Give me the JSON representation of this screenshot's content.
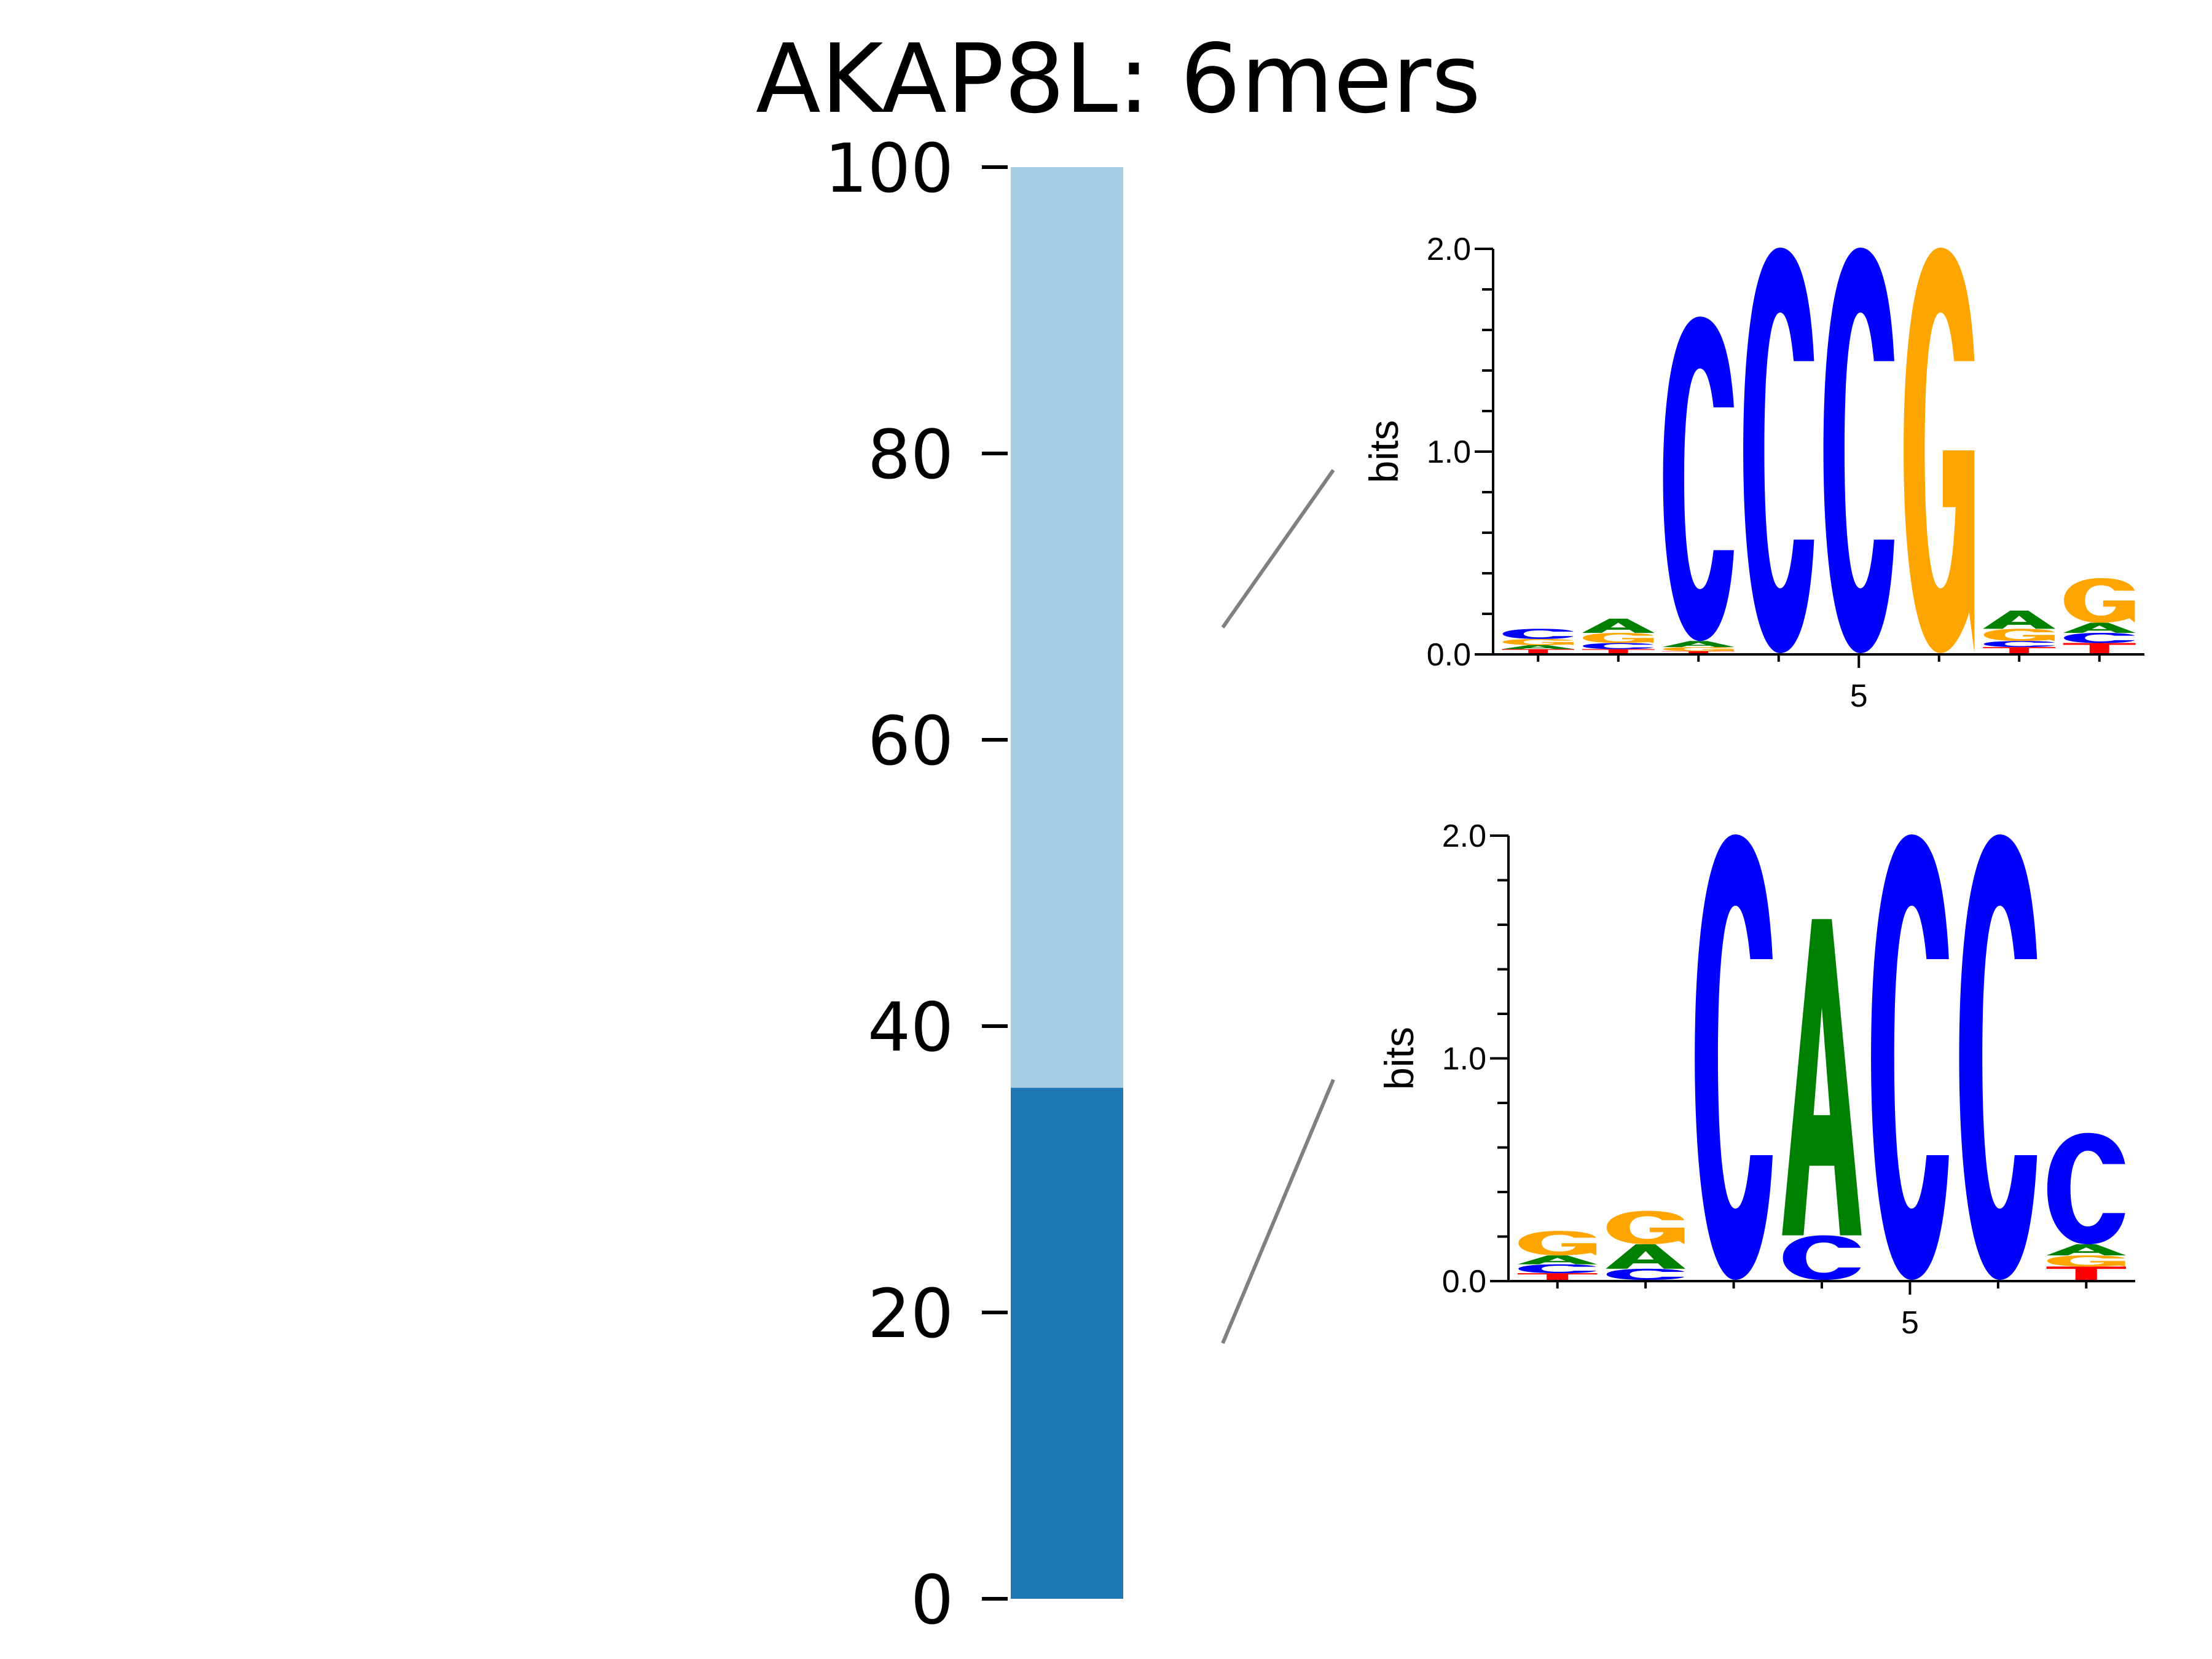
{
  "chart_data": {
    "type": "bar",
    "title": "AKAP8L: 6mers",
    "ylim": [
      0,
      100
    ],
    "yticks": [
      0,
      20,
      40,
      60,
      80,
      100
    ],
    "stacked": true,
    "segments": [
      {
        "value": 35.7,
        "color": "#1f77b4"
      },
      {
        "value": 64.3,
        "color": "#a6cee3"
      }
    ],
    "motif_logos": [
      {
        "segment": 1,
        "ylabel": "bits",
        "ylim": [
          0,
          2.0
        ],
        "ytick_labels": [
          "0.0",
          "1.0",
          "2.0"
        ],
        "xtick_label": "5",
        "xtick_position": 5,
        "positions": [
          [
            [
              "T",
              0.02
            ],
            [
              "A",
              0.02
            ],
            [
              "G",
              0.03
            ],
            [
              "C",
              0.05
            ]
          ],
          [
            [
              "T",
              0.02
            ],
            [
              "C",
              0.03
            ],
            [
              "G",
              0.05
            ],
            [
              "A",
              0.07
            ]
          ],
          [
            [
              "T",
              0.01
            ],
            [
              "G",
              0.02
            ],
            [
              "A",
              0.03
            ],
            [
              "C",
              1.6
            ]
          ],
          [
            [
              "C",
              2.0
            ]
          ],
          [
            [
              "C",
              2.0
            ]
          ],
          [
            [
              "G",
              2.0
            ]
          ],
          [
            [
              "T",
              0.03
            ],
            [
              "C",
              0.03
            ],
            [
              "G",
              0.06
            ],
            [
              "A",
              0.09
            ]
          ],
          [
            [
              "T",
              0.05
            ],
            [
              "C",
              0.05
            ],
            [
              "A",
              0.05
            ],
            [
              "G",
              0.22
            ]
          ]
        ]
      },
      {
        "segment": 0,
        "ylabel": "bits",
        "ylim": [
          0,
          2.0
        ],
        "ytick_labels": [
          "0.0",
          "1.0",
          "2.0"
        ],
        "xtick_label": "5",
        "xtick_position": 5,
        "positions": [
          [
            [
              "T",
              0.03
            ],
            [
              "C",
              0.04
            ],
            [
              "A",
              0.04
            ],
            [
              "G",
              0.11
            ]
          ],
          [
            [
              "C",
              0.05
            ],
            [
              "A",
              0.11
            ],
            [
              "G",
              0.15
            ]
          ],
          [
            [
              "C",
              2.0
            ]
          ],
          [
            [
              "C",
              0.2
            ],
            [
              "A",
              1.42
            ]
          ],
          [
            [
              "C",
              2.0
            ]
          ],
          [
            [
              "C",
              2.0
            ]
          ],
          [
            [
              "T",
              0.06
            ],
            [
              "G",
              0.05
            ],
            [
              "A",
              0.05
            ],
            [
              "C",
              0.5
            ]
          ]
        ]
      }
    ]
  },
  "colors": {
    "A": "#008000",
    "C": "#0000ff",
    "G": "#ffa500",
    "T": "#ff0000",
    "connector": "#808080"
  }
}
